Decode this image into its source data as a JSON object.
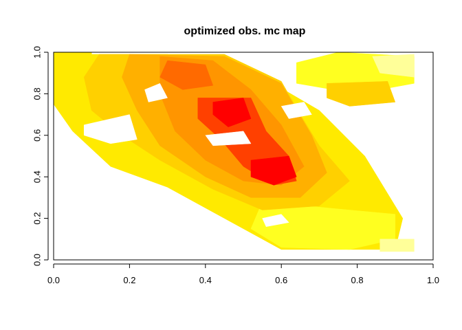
{
  "chart_data": {
    "type": "heatmap",
    "title": "optimized obs. mc map",
    "xlabel": "",
    "ylabel": "",
    "xlim": [
      0,
      1
    ],
    "ylim": [
      0,
      1
    ],
    "x_ticks": [
      "0.0",
      "0.2",
      "0.4",
      "0.6",
      "0.8",
      "1.0"
    ],
    "y_ticks": [
      "0.0",
      "0.2",
      "0.4",
      "0.6",
      "0.8",
      "1.0"
    ],
    "grid": false,
    "legend": "none",
    "color_scale": "heat",
    "colors": [
      "#FF0000",
      "#FF4000",
      "#FF6A00",
      "#FF9500",
      "#FFB000",
      "#FFD000",
      "#FFEA00",
      "#FFFF20",
      "#FFFF99"
    ],
    "regions": [
      {
        "level": 6,
        "points": [
          [
            0.0,
            0.99
          ],
          [
            0.3,
            0.99
          ],
          [
            0.55,
            0.88
          ],
          [
            0.7,
            0.72
          ],
          [
            0.82,
            0.5
          ],
          [
            0.92,
            0.2
          ],
          [
            0.9,
            0.05
          ],
          [
            0.6,
            0.05
          ],
          [
            0.45,
            0.2
          ],
          [
            0.3,
            0.35
          ],
          [
            0.15,
            0.45
          ],
          [
            0.05,
            0.62
          ],
          [
            0.0,
            0.75
          ]
        ]
      },
      {
        "level": 7,
        "points": [
          [
            0.64,
            0.95
          ],
          [
            0.75,
            1.0
          ],
          [
            0.95,
            0.98
          ],
          [
            0.95,
            0.85
          ],
          [
            0.8,
            0.8
          ],
          [
            0.64,
            0.85
          ]
        ]
      },
      {
        "level": 7,
        "points": [
          [
            0.55,
            0.28
          ],
          [
            0.78,
            0.24
          ],
          [
            0.9,
            0.22
          ],
          [
            0.9,
            0.1
          ],
          [
            0.78,
            0.05
          ],
          [
            0.6,
            0.06
          ],
          [
            0.52,
            0.15
          ]
        ]
      },
      {
        "level": 6,
        "points": [
          [
            0.0,
            1.0
          ],
          [
            0.1,
            1.0
          ],
          [
            0.1,
            0.82
          ],
          [
            0.0,
            0.8
          ]
        ]
      },
      {
        "level": 8,
        "points": [
          [
            0.84,
            0.98
          ],
          [
            0.95,
            0.99
          ],
          [
            0.95,
            0.88
          ],
          [
            0.86,
            0.9
          ]
        ]
      },
      {
        "level": 8,
        "points": [
          [
            0.86,
            0.1
          ],
          [
            0.95,
            0.1
          ],
          [
            0.95,
            0.04
          ],
          [
            0.86,
            0.04
          ]
        ]
      },
      {
        "level": 5,
        "points": [
          [
            0.12,
            0.99
          ],
          [
            0.45,
            0.99
          ],
          [
            0.6,
            0.86
          ],
          [
            0.65,
            0.7
          ],
          [
            0.7,
            0.55
          ],
          [
            0.78,
            0.38
          ],
          [
            0.7,
            0.26
          ],
          [
            0.55,
            0.24
          ],
          [
            0.42,
            0.34
          ],
          [
            0.28,
            0.48
          ],
          [
            0.18,
            0.6
          ],
          [
            0.1,
            0.72
          ],
          [
            0.08,
            0.88
          ]
        ]
      },
      {
        "level": 5,
        "points": [
          [
            0.72,
            0.85
          ],
          [
            0.88,
            0.86
          ],
          [
            0.9,
            0.76
          ],
          [
            0.78,
            0.74
          ],
          [
            0.72,
            0.78
          ]
        ]
      },
      {
        "level": 4,
        "points": [
          [
            0.2,
            0.99
          ],
          [
            0.45,
            0.98
          ],
          [
            0.6,
            0.85
          ],
          [
            0.68,
            0.6
          ],
          [
            0.72,
            0.42
          ],
          [
            0.65,
            0.3
          ],
          [
            0.52,
            0.3
          ],
          [
            0.4,
            0.4
          ],
          [
            0.28,
            0.55
          ],
          [
            0.22,
            0.72
          ],
          [
            0.18,
            0.88
          ]
        ]
      },
      {
        "level": 3,
        "points": [
          [
            0.28,
            0.98
          ],
          [
            0.42,
            0.96
          ],
          [
            0.52,
            0.82
          ],
          [
            0.6,
            0.65
          ],
          [
            0.66,
            0.45
          ],
          [
            0.6,
            0.36
          ],
          [
            0.5,
            0.38
          ],
          [
            0.4,
            0.48
          ],
          [
            0.32,
            0.62
          ],
          [
            0.28,
            0.8
          ]
        ]
      },
      {
        "level": 2,
        "points": [
          [
            0.3,
            0.96
          ],
          [
            0.4,
            0.94
          ],
          [
            0.42,
            0.84
          ],
          [
            0.34,
            0.82
          ],
          [
            0.28,
            0.88
          ]
        ]
      },
      {
        "level": 1,
        "points": [
          [
            0.38,
            0.78
          ],
          [
            0.52,
            0.78
          ],
          [
            0.56,
            0.62
          ],
          [
            0.62,
            0.5
          ],
          [
            0.64,
            0.38
          ],
          [
            0.58,
            0.36
          ],
          [
            0.5,
            0.45
          ],
          [
            0.44,
            0.58
          ],
          [
            0.38,
            0.68
          ]
        ]
      },
      {
        "level": 0,
        "points": [
          [
            0.42,
            0.76
          ],
          [
            0.5,
            0.78
          ],
          [
            0.52,
            0.68
          ],
          [
            0.46,
            0.64
          ],
          [
            0.42,
            0.7
          ]
        ]
      },
      {
        "level": 0,
        "points": [
          [
            0.52,
            0.48
          ],
          [
            0.62,
            0.5
          ],
          [
            0.64,
            0.4
          ],
          [
            0.58,
            0.36
          ],
          [
            0.52,
            0.4
          ]
        ]
      },
      {
        "level": 9,
        "points": [
          [
            0.08,
            0.65
          ],
          [
            0.2,
            0.7
          ],
          [
            0.22,
            0.58
          ],
          [
            0.15,
            0.56
          ],
          [
            0.08,
            0.6
          ]
        ]
      },
      {
        "level": 9,
        "points": [
          [
            0.24,
            0.82
          ],
          [
            0.28,
            0.85
          ],
          [
            0.3,
            0.78
          ],
          [
            0.25,
            0.76
          ]
        ]
      },
      {
        "level": 9,
        "points": [
          [
            0.4,
            0.6
          ],
          [
            0.5,
            0.62
          ],
          [
            0.52,
            0.56
          ],
          [
            0.42,
            0.55
          ]
        ]
      },
      {
        "level": 9,
        "points": [
          [
            0.6,
            0.74
          ],
          [
            0.66,
            0.76
          ],
          [
            0.68,
            0.7
          ],
          [
            0.62,
            0.68
          ]
        ]
      },
      {
        "level": 9,
        "points": [
          [
            0.55,
            0.2
          ],
          [
            0.6,
            0.22
          ],
          [
            0.62,
            0.18
          ],
          [
            0.56,
            0.16
          ]
        ]
      }
    ]
  }
}
